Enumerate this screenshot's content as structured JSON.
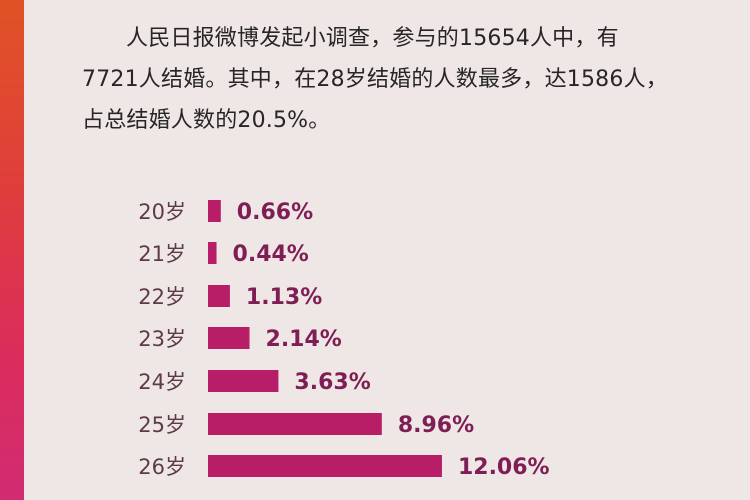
{
  "intro": {
    "line1": "人民日报微博发起小调查，参与的15654人中，有",
    "line2": "7721人结婚。其中，在28岁结婚的人数最多，达1586人，",
    "line3": "占总结婚人数的20.5%。"
  },
  "chart_data": {
    "type": "bar",
    "orientation": "horizontal",
    "categories": [
      "20岁",
      "21岁",
      "22岁",
      "23岁",
      "24岁",
      "25岁",
      "26岁"
    ],
    "values": [
      0.66,
      0.44,
      1.13,
      2.14,
      3.63,
      8.96,
      12.06
    ],
    "value_labels": [
      "0.66%",
      "0.44%",
      "1.13%",
      "2.14%",
      "3.63%",
      "8.96%",
      "12.06%"
    ],
    "title": "",
    "xlabel": "",
    "ylabel": "",
    "grid": false,
    "colors": {
      "bar": "#b81e68",
      "label": "#7f1e54",
      "category": "#5d3a48"
    }
  }
}
